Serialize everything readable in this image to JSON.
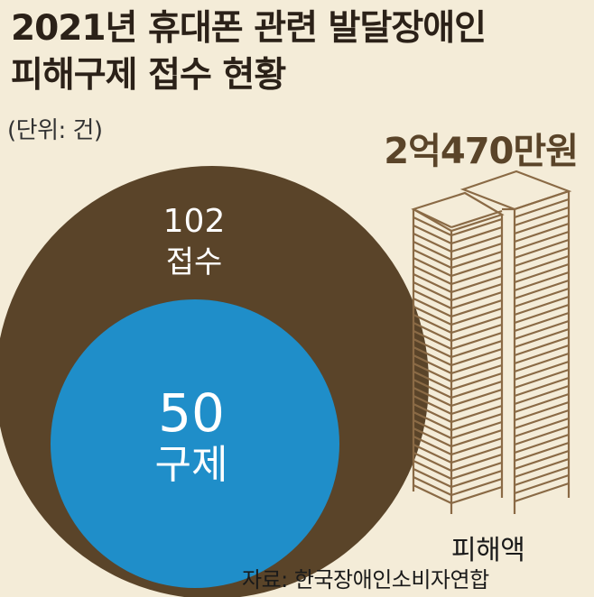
{
  "title_line1": "2021년 휴대폰 관련 발달장애인",
  "title_line2": "피해구제 접수 현황",
  "unit": "(단위: 건)",
  "amount": "2억470만원",
  "damage_label": "피해액",
  "source": "자료: 한국장애인소비자연합",
  "colors": {
    "background": "#f4ecd8",
    "received": "#5a4429",
    "relief": "#1f8ec9",
    "building_line": "#8a6a45"
  },
  "chart_data": {
    "type": "nested-circle",
    "title": "2021년 휴대폰 관련 발달장애인 피해구제 접수 현황",
    "unit": "건",
    "items": [
      {
        "label": "접수",
        "value": 102
      },
      {
        "label": "구제",
        "value": 50
      }
    ],
    "damage": {
      "label": "피해액",
      "value": "2억470만원"
    }
  }
}
